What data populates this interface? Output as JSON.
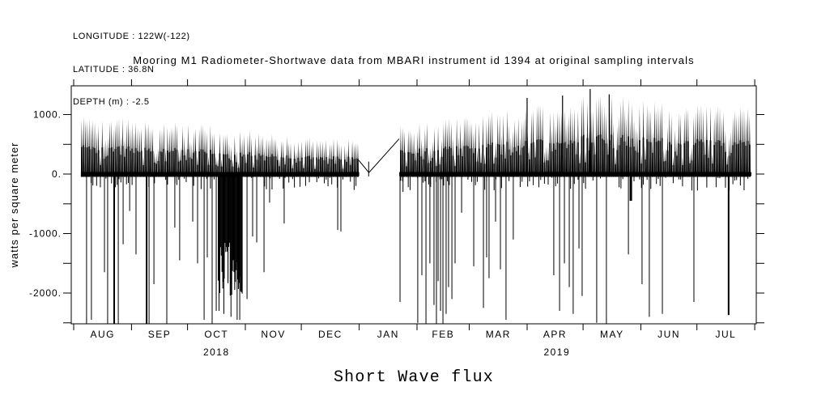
{
  "header": {
    "lines": [
      "LONGITUDE : 122W(-122)",
      "LATITUDE : 36.8N",
      "DEPTH (m) : -2.5"
    ]
  },
  "title": "Mooring M1 Radiometer-Shortwave data from MBARI instrument id 1394 at original sampling intervals",
  "chart_data": {
    "type": "line",
    "subtype": "spike-timeseries",
    "title": "Mooring M1 Radiometer-Shortwave data from MBARI instrument id 1394 at original sampling intervals",
    "bottom_title": "Short Wave flux",
    "ylabel": "watts per square meter",
    "xlabel": "",
    "ylim": [
      -2520,
      1485
    ],
    "y_major_ticks": [
      1000,
      0,
      -1000,
      -2000
    ],
    "y_tick_labels": [
      "1000.",
      "0.",
      "-1000.",
      "-2000."
    ],
    "y_minor_step": 500,
    "y_all_ticks": [
      1000,
      500,
      0,
      -500,
      -1000,
      -1500,
      -2000,
      -2500
    ],
    "grid": false,
    "legend": "none",
    "months": [
      "AUG",
      "SEP",
      "OCT",
      "NOV",
      "DEC",
      "JAN",
      "FEB",
      "MAR",
      "APR",
      "MAY",
      "JUN",
      "JUL"
    ],
    "month_days": [
      31,
      30,
      31,
      30,
      31,
      31,
      28,
      31,
      30,
      31,
      30,
      31
    ],
    "years": [
      {
        "label": "2018",
        "day": 76.5
      },
      {
        "label": "2019",
        "day": 259
      }
    ],
    "data_start_day": 4.3,
    "data_end_day": 363.2,
    "gap_days": [
      153.0,
      174.5
    ],
    "gap_line_points": [
      [
        152.8,
        230
      ],
      [
        158.2,
        25
      ],
      [
        174.4,
        590
      ]
    ],
    "gap_point_tick": {
      "day": 158.1,
      "top": 210,
      "bottom": -40
    },
    "seed": 11,
    "daily_peak_envelope": [
      [
        4,
        960
      ],
      [
        20,
        930
      ],
      [
        35,
        900
      ],
      [
        50,
        860
      ],
      [
        61,
        820
      ],
      [
        75,
        790
      ],
      [
        90,
        730
      ],
      [
        105,
        660
      ],
      [
        122,
        600
      ],
      [
        140,
        575
      ],
      [
        153,
        560
      ],
      [
        175,
        780
      ],
      [
        190,
        860
      ],
      [
        212,
        980
      ],
      [
        232,
        1050
      ],
      [
        243,
        1120
      ],
      [
        265,
        1220
      ],
      [
        278,
        1300
      ],
      [
        295,
        1260
      ],
      [
        310,
        1200
      ],
      [
        335,
        1150
      ],
      [
        363,
        1080
      ]
    ],
    "highlight_peaks": [
      [
        276.8,
        1430
      ],
      [
        262,
        1320
      ],
      [
        287,
        1340
      ],
      [
        243,
        1280
      ]
    ],
    "negative_spike_cluster": {
      "from": 77.5,
      "to": 90.5,
      "step": 0.4,
      "depth_min": -1150,
      "depth_max": -2050
    },
    "negative_spikes": [
      [
        6.9,
        -2600
      ],
      [
        9.5,
        -2450
      ],
      [
        16.5,
        -1650
      ],
      [
        18.2,
        -2600
      ],
      [
        21.7,
        -2600,
        2
      ],
      [
        23.9,
        -2600
      ],
      [
        26.5,
        -1180
      ],
      [
        30,
        -620
      ],
      [
        33.4,
        -1350
      ],
      [
        39.1,
        -2600,
        2
      ],
      [
        40.4,
        -2600
      ],
      [
        43,
        -1850
      ],
      [
        49.9,
        -2600
      ],
      [
        54.2,
        -900
      ],
      [
        56.8,
        -1450
      ],
      [
        63.8,
        -800
      ],
      [
        66.4,
        -1500
      ],
      [
        69.9,
        -2450
      ],
      [
        71.6,
        -1400
      ],
      [
        74.2,
        -2600
      ],
      [
        76.4,
        -2300
      ],
      [
        77.9,
        -2300
      ],
      [
        80.5,
        -2350
      ],
      [
        84.3,
        -2400
      ],
      [
        87.6,
        -2450
      ],
      [
        89,
        -2450
      ],
      [
        92.9,
        -2100
      ],
      [
        95.9,
        -1050
      ],
      [
        98.1,
        -1150
      ],
      [
        102,
        -1650
      ],
      [
        105,
        -480
      ],
      [
        112.8,
        -830
      ],
      [
        141.5,
        -940
      ],
      [
        143.2,
        -965
      ],
      [
        174.9,
        -2150
      ],
      [
        176.5,
        -300
      ],
      [
        184.4,
        -2500
      ],
      [
        186.6,
        -1700
      ],
      [
        188.8,
        -2600
      ],
      [
        190.9,
        -1500
      ],
      [
        193.1,
        -2200
      ],
      [
        194.4,
        -2600
      ],
      [
        195.3,
        -1800
      ],
      [
        196.6,
        -2300
      ],
      [
        197.9,
        -2600
      ],
      [
        199.6,
        -2350
      ],
      [
        200.9,
        -1900
      ],
      [
        202.7,
        -2100
      ],
      [
        204.4,
        -1500
      ],
      [
        207.9,
        -650
      ],
      [
        214.4,
        -1550
      ],
      [
        219.6,
        -2250
      ],
      [
        221.3,
        -1400
      ],
      [
        222.6,
        -1750
      ],
      [
        226.1,
        -800
      ],
      [
        228.7,
        -1600
      ],
      [
        231.7,
        -2450
      ],
      [
        235.6,
        -1100
      ],
      [
        257.3,
        -1700
      ],
      [
        260.4,
        -2300
      ],
      [
        263,
        -1500
      ],
      [
        265.6,
        -1900
      ],
      [
        267.7,
        -2350
      ],
      [
        270.8,
        -1250
      ],
      [
        272.5,
        -2050
      ],
      [
        280.3,
        -2500
      ],
      [
        285.5,
        -2600
      ],
      [
        297.3,
        -1350
      ],
      [
        298.6,
        -450,
        3
      ],
      [
        304.6,
        -1850
      ],
      [
        308.5,
        -2400
      ],
      [
        315.5,
        -2350
      ],
      [
        332.4,
        -2150
      ],
      [
        351,
        -2370,
        2
      ]
    ],
    "line_color": "#000000",
    "background_color": "#ffffff"
  }
}
